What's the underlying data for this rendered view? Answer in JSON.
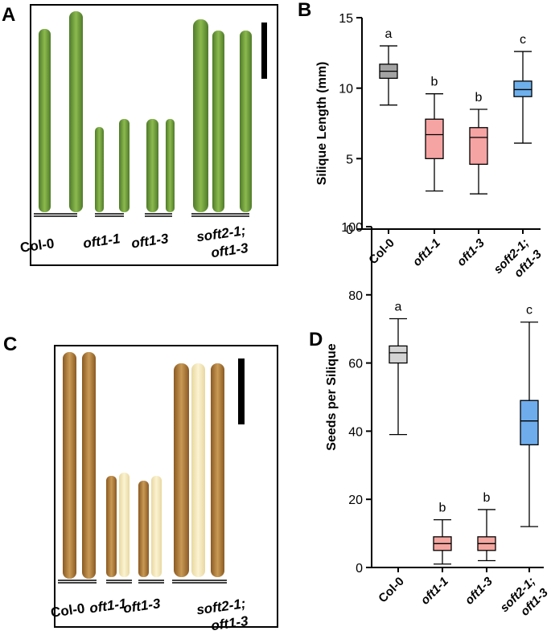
{
  "panels": [
    {
      "letter": "A",
      "labels": [
        [
          "Col-0"
        ],
        [
          "oft1-1"
        ],
        [
          "oft1-3"
        ],
        [
          "soft2-1;",
          "oft1-3"
        ]
      ]
    },
    {
      "letter": "C",
      "labels": [
        [
          "Col-0"
        ],
        [
          "oft1-1"
        ],
        [
          "oft1-3"
        ],
        [
          "soft2-1;",
          "oft1-3"
        ]
      ]
    }
  ],
  "chart_data": [
    {
      "type": "box",
      "letter": "B",
      "y_label": "Silique Length (mm)",
      "categories": [
        [
          "Col-0"
        ],
        [
          "oft1-1"
        ],
        [
          "oft1-3"
        ],
        [
          "soft2-1;",
          "oft1-3"
        ]
      ],
      "ylim": [
        0,
        15
      ],
      "yticks": [
        0,
        5,
        10,
        15
      ],
      "boxes": [
        {
          "min": 8.8,
          "q1": 10.7,
          "median": 11.2,
          "q3": 11.7,
          "max": 13.0,
          "color": "#a3a3a3",
          "letter": "a"
        },
        {
          "min": 2.7,
          "q1": 5.0,
          "median": 6.7,
          "q3": 7.8,
          "max": 9.6,
          "color": "#f6a3a3",
          "letter": "b"
        },
        {
          "min": 2.5,
          "q1": 4.6,
          "median": 6.5,
          "q3": 7.2,
          "max": 8.5,
          "color": "#f6a3a3",
          "letter": "b"
        },
        {
          "min": 6.1,
          "q1": 9.4,
          "median": 9.9,
          "q3": 10.5,
          "max": 12.6,
          "color": "#6eb0ec",
          "letter": "c"
        }
      ]
    },
    {
      "type": "box",
      "letter": "D",
      "y_label": "Seeds per Silique",
      "categories": [
        [
          "Col-0"
        ],
        [
          "oft1-1"
        ],
        [
          "oft1-3"
        ],
        [
          "soft2-1;",
          "oft1-3"
        ]
      ],
      "ylim": [
        0,
        100
      ],
      "yticks": [
        0,
        20,
        40,
        60,
        80,
        100
      ],
      "boxes": [
        {
          "min": 39,
          "q1": 60,
          "median": 63,
          "q3": 65,
          "max": 73,
          "color": "#d4d4d4",
          "letter": "a"
        },
        {
          "min": 1,
          "q1": 5,
          "median": 7,
          "q3": 9,
          "max": 14,
          "color": "#f4a6a0",
          "letter": "b"
        },
        {
          "min": 2,
          "q1": 5,
          "median": 7,
          "q3": 9,
          "max": 17,
          "color": "#f4a6a0",
          "letter": "b"
        },
        {
          "min": 12,
          "q1": 36,
          "median": 43,
          "q3": 49,
          "max": 72,
          "color": "#6eacec",
          "letter": "c"
        }
      ]
    }
  ]
}
